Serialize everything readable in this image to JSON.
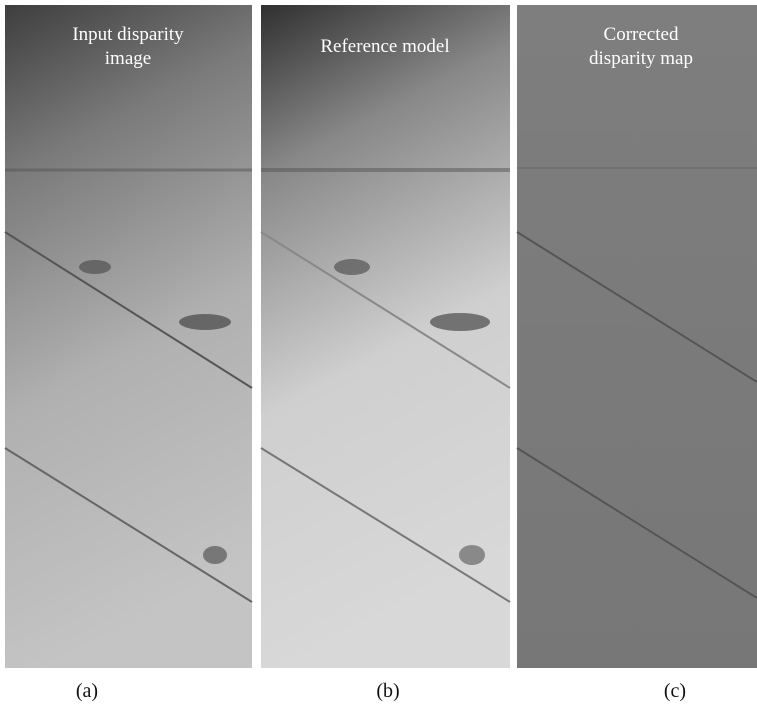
{
  "panels": [
    {
      "title_lines": [
        "Input disparity",
        "image"
      ],
      "label": "(a)"
    },
    {
      "title_lines": [
        "Reference model"
      ],
      "label": "(b)"
    },
    {
      "title_lines": [
        "Corrected",
        "disparity map"
      ],
      "label": "(c)"
    }
  ]
}
